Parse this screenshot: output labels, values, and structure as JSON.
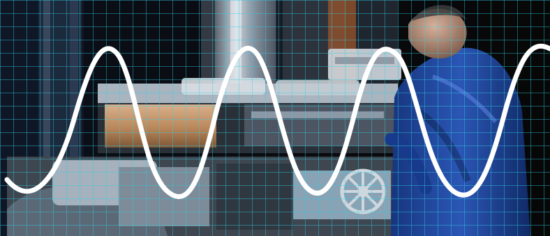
{
  "image": {
    "description_tag": "industrial-machine-operator-photo-with-grid-and-sine-overlay",
    "colors": {
      "background_dark": "#0a0d14",
      "machine_steel": "#8b98a6",
      "machine_highlight": "#d7dde2",
      "wood_block": "#b9875a",
      "worker_jacket": "#1f3f8f",
      "worker_jacket_highlight": "#3a63c2",
      "grid_line": "#2fd0e6",
      "sine_wave": "#ffffff"
    },
    "overlay": {
      "grid": true,
      "wave": "sine",
      "wave_cycles_visible": 4
    }
  }
}
